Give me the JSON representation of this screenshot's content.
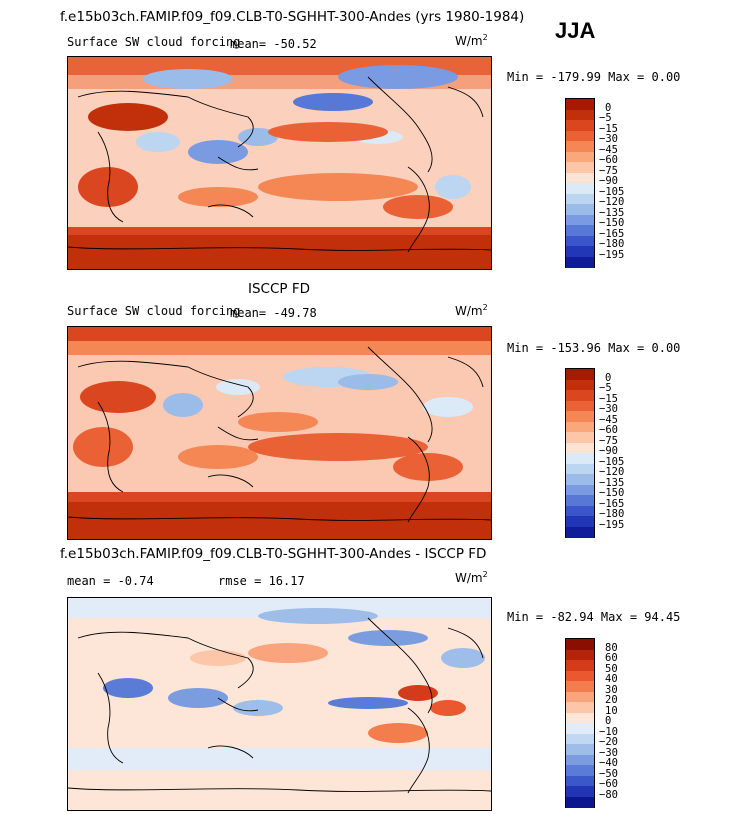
{
  "season": "JJA",
  "colors": {
    "map_ocean_base": "#fbd3c2",
    "land_outline": "#000000"
  },
  "panels": [
    {
      "id": "model",
      "title": "f.e15b03ch.FAMIP.f09_f09.CLB-T0-SGHHT-300-Andes (yrs 1980-1984)",
      "field_label": "Surface SW cloud forcing",
      "stat_text": "mean= -50.52",
      "units": "W/m",
      "units_sup": "2",
      "minmax": "Min = -179.99 Max =   0.00",
      "colorbar": {
        "labels": [
          "0",
          "-5",
          "-15",
          "-30",
          "-45",
          "-60",
          "-75",
          "-90",
          "-105",
          "-120",
          "-135",
          "-150",
          "-165",
          "-180",
          "-195"
        ],
        "colors": [
          "#a51a00",
          "#c2300b",
          "#d9461f",
          "#ea6136",
          "#f48754",
          "#f9a77b",
          "#fcc6a8",
          "#fde3d4",
          "#dce9f6",
          "#bcd5f0",
          "#9bbbe9",
          "#7a9be1",
          "#5778d7",
          "#3b56cb",
          "#2236b8",
          "#0f1d9b"
        ]
      }
    },
    {
      "id": "obs",
      "title": "ISCCP FD",
      "field_label": "Surface SW cloud forcing",
      "stat_text": "mean= -49.78",
      "units": "W/m",
      "units_sup": "2",
      "minmax": "Min = -153.96 Max =   0.00",
      "colorbar": {
        "labels": [
          "0",
          "-5",
          "-15",
          "-30",
          "-45",
          "-60",
          "-75",
          "-90",
          "-105",
          "-120",
          "-135",
          "-150",
          "-165",
          "-180",
          "-195"
        ],
        "colors": [
          "#a51a00",
          "#c2300b",
          "#d9461f",
          "#ea6136",
          "#f48754",
          "#f9a77b",
          "#fcc6a8",
          "#fde3d4",
          "#dce9f6",
          "#bcd5f0",
          "#9bbbe9",
          "#7a9be1",
          "#5778d7",
          "#3b56cb",
          "#2236b8",
          "#0f1d9b"
        ]
      }
    },
    {
      "id": "diff",
      "title": "f.e15b03ch.FAMIP.f09_f09.CLB-T0-SGHHT-300-Andes - ISCCP FD",
      "mean_text": "mean =   -0.74",
      "rmse_text": "rmse =   16.17",
      "units": "W/m",
      "units_sup": "2",
      "minmax": "Min = -82.94 Max =  94.45",
      "colorbar": {
        "labels": [
          "80",
          "60",
          "50",
          "40",
          "30",
          "20",
          "10",
          "0",
          "-10",
          "-20",
          "-30",
          "-40",
          "-50",
          "-60",
          "-80"
        ],
        "colors": [
          "#8b0f00",
          "#b5240a",
          "#d43b1a",
          "#e9582e",
          "#f47d4e",
          "#f9a47c",
          "#fcc6a9",
          "#fde5d8",
          "#e1ecf8",
          "#c2d7f1",
          "#9fbde9",
          "#7b9de0",
          "#5a7bd6",
          "#3b58c9",
          "#2236b5",
          "#0c168f"
        ]
      }
    }
  ]
}
